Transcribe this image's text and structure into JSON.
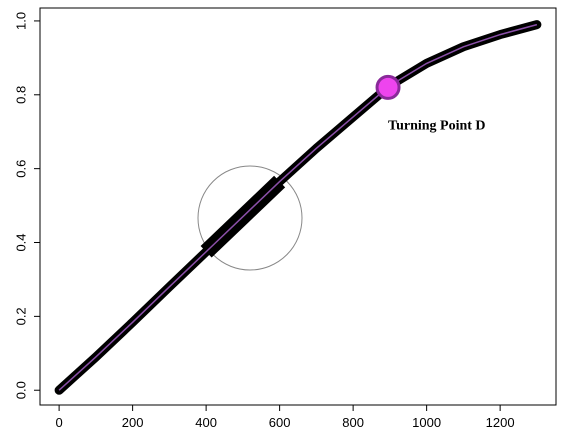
{
  "chart_data": {
    "type": "line",
    "x": [
      0,
      100,
      200,
      300,
      400,
      500,
      600,
      700,
      800,
      900,
      1000,
      1100,
      1200,
      1300
    ],
    "series": [
      {
        "color": "#000000",
        "values": [
          0,
          0.09,
          0.184,
          0.28,
          0.375,
          0.47,
          0.565,
          0.655,
          0.74,
          0.825,
          0.885,
          0.93,
          0.963,
          0.99
        ]
      }
    ],
    "xlim": [
      -52,
      1352
    ],
    "xticks": [
      0,
      200,
      400,
      600,
      800,
      1000,
      1200
    ],
    "ylim": [
      -0.04,
      1.035
    ],
    "yticks": [
      {
        "value": 0,
        "label": "0.0"
      },
      0.2,
      0.4,
      0.6,
      0.8,
      {
        "value": 1,
        "label": "1.0"
      }
    ],
    "annotation": {
      "label": "Turning Point D",
      "x": 895,
      "y": 0.82,
      "color": "#ee44ee"
    }
  }
}
